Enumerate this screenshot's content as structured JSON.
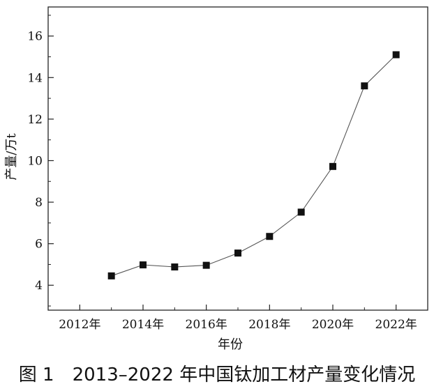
{
  "chart_data": {
    "type": "line",
    "x": [
      2013,
      2014,
      2015,
      2016,
      2017,
      2018,
      2019,
      2020,
      2021,
      2022
    ],
    "series": [
      {
        "values": [
          4.45,
          4.98,
          4.88,
          4.96,
          5.55,
          6.35,
          7.52,
          9.72,
          13.6,
          15.1
        ]
      }
    ],
    "xlabel": "年份",
    "ylabel": "产量/万t",
    "xlim": [
      2011.0,
      2023.0
    ],
    "ylim": [
      2.8,
      17.4
    ],
    "xticks": [
      2012,
      2014,
      2016,
      2018,
      2020,
      2022
    ],
    "xtick_labels": [
      "2012年",
      "2014年",
      "2016年",
      "2018年",
      "2020年",
      "2022年"
    ],
    "yticks": [
      4,
      6,
      8,
      10,
      12,
      14,
      16
    ],
    "ytick_labels": [
      "4",
      "6",
      "8",
      "10",
      "12",
      "14",
      "16"
    ],
    "marker": "square",
    "line_color": "#555555",
    "marker_color": "#111111",
    "grid": false,
    "legend": "none"
  },
  "caption": "图 1　2013–2022 年中国钛加工材产量变化情况"
}
